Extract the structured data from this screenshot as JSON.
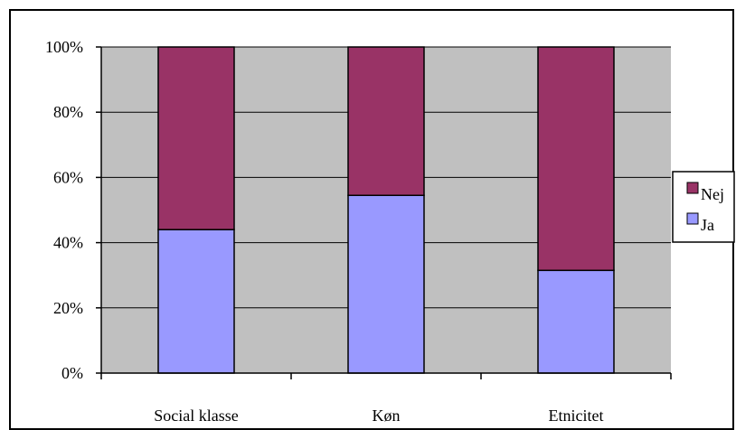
{
  "chart_data": {
    "type": "bar",
    "stacked": true,
    "percent": true,
    "categories": [
      "Social klasse",
      "Køn",
      "Etnicitet"
    ],
    "series": [
      {
        "name": "Ja",
        "values": [
          44,
          54.5,
          31.5
        ],
        "color": "#9999ff"
      },
      {
        "name": "Nej",
        "values": [
          56,
          45.5,
          68.5
        ],
        "color": "#993366"
      }
    ],
    "ylim": [
      0,
      100
    ],
    "yticks": [
      "0%",
      "20%",
      "40%",
      "60%",
      "80%",
      "100%"
    ],
    "grid": true,
    "legend": {
      "position": "right",
      "entries": [
        "Nej",
        "Ja"
      ]
    },
    "plot_background": "#c0c0c0"
  }
}
